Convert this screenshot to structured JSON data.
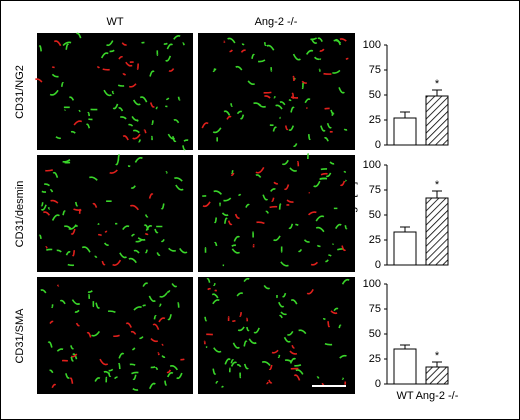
{
  "panel_labels": {
    "columns": [
      "WT",
      "Ang-2 -/-"
    ],
    "rows": [
      "CD31/NG2",
      "CD31/desmin",
      "CD31/SMA"
    ]
  },
  "chart_data": [
    {
      "type": "bar",
      "categories": [
        null,
        null
      ],
      "values": [
        27,
        49
      ],
      "errors": [
        6,
        6
      ],
      "significance": [
        null,
        "*"
      ],
      "patterns": [
        "none",
        "hatch"
      ],
      "color": "#000000",
      "ylim": [
        0,
        100
      ],
      "yticks": [
        0,
        25,
        50,
        75,
        100
      ]
    },
    {
      "type": "bar",
      "y_label": "Coverage [%]",
      "categories": [
        null,
        null
      ],
      "values": [
        33,
        67
      ],
      "errors": [
        5,
        7
      ],
      "significance": [
        null,
        "*"
      ],
      "patterns": [
        "none",
        "hatch"
      ],
      "color": "#000000",
      "ylim": [
        0,
        100
      ],
      "yticks": [
        0,
        25,
        50,
        75,
        100
      ]
    },
    {
      "type": "bar",
      "categories": [
        "WT",
        "Ang-2 -/-"
      ],
      "values": [
        35,
        17
      ],
      "errors": [
        4,
        5
      ],
      "significance": [
        null,
        "*"
      ],
      "patterns": [
        "none",
        "hatch"
      ],
      "color": "#000000",
      "ylim": [
        0,
        100
      ],
      "yticks": [
        0,
        25,
        50,
        75,
        100
      ]
    }
  ]
}
